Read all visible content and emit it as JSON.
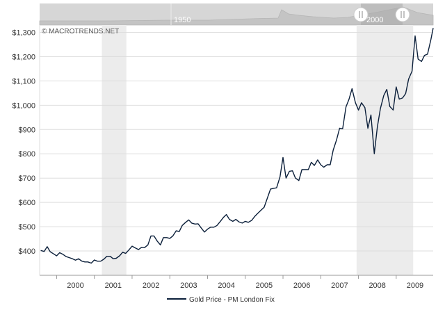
{
  "watermark": "© MACROTRENDS.NET",
  "navigator": {
    "year_label": "1950",
    "year_label_right": "2000"
  },
  "colors": {
    "line": "#0b1f3a",
    "recession": "#ececec",
    "grid": "#dddddd",
    "navigator_bg": "#d6d6d6",
    "navigator_window": "#bdbdbd"
  },
  "chart_data": {
    "type": "line",
    "title": "",
    "xlabel": "",
    "ylabel": "",
    "ylim": [
      300,
      1330
    ],
    "xlim": [
      1999.55,
      2009.98
    ],
    "grid": "horizontal",
    "legend_placement": "bottom",
    "y_ticks": [
      "$400",
      "$500",
      "$600",
      "$700",
      "$800",
      "$900",
      "$1,000",
      "$1,100",
      "$1,200",
      "$1,300"
    ],
    "y_tick_values": [
      400,
      500,
      600,
      700,
      800,
      900,
      1000,
      1100,
      1200,
      1300
    ],
    "x_ticks": [
      "2000",
      "2001",
      "2002",
      "2003",
      "2004",
      "2005",
      "2006",
      "2007",
      "2008",
      "2009"
    ],
    "x_tick_values": [
      2000,
      2001,
      2002,
      2003,
      2004,
      2005,
      2006,
      2007,
      2008,
      2009
    ],
    "recessions": [
      {
        "start": 2001.2,
        "end": 2001.85
      },
      {
        "start": 2007.95,
        "end": 2009.45
      }
    ],
    "series": [
      {
        "name": "Gold Price - PM London Fix",
        "x": [
          1999.58,
          1999.67,
          1999.75,
          1999.83,
          1999.92,
          2000.0,
          2000.08,
          2000.17,
          2000.25,
          2000.33,
          2000.42,
          2000.5,
          2000.58,
          2000.67,
          2000.75,
          2000.83,
          2000.92,
          2001.0,
          2001.08,
          2001.17,
          2001.25,
          2001.33,
          2001.42,
          2001.5,
          2001.58,
          2001.67,
          2001.75,
          2001.83,
          2001.92,
          2002.0,
          2002.08,
          2002.17,
          2002.25,
          2002.33,
          2002.42,
          2002.5,
          2002.58,
          2002.67,
          2002.75,
          2002.83,
          2002.92,
          2003.0,
          2003.08,
          2003.17,
          2003.25,
          2003.33,
          2003.42,
          2003.5,
          2003.58,
          2003.67,
          2003.75,
          2003.83,
          2003.92,
          2004.0,
          2004.08,
          2004.17,
          2004.25,
          2004.33,
          2004.42,
          2004.5,
          2004.58,
          2004.67,
          2004.75,
          2004.83,
          2004.92,
          2005.0,
          2005.08,
          2005.17,
          2005.25,
          2005.33,
          2005.42,
          2005.5,
          2005.58,
          2005.67,
          2005.75,
          2005.83,
          2005.92,
          2006.0,
          2006.08,
          2006.17,
          2006.25,
          2006.33,
          2006.42,
          2006.5,
          2006.58,
          2006.67,
          2006.75,
          2006.83,
          2006.92,
          2007.0,
          2007.08,
          2007.17,
          2007.25,
          2007.33,
          2007.42,
          2007.5,
          2007.58,
          2007.67,
          2007.75,
          2007.83,
          2007.92,
          2008.0,
          2008.08,
          2008.17,
          2008.25,
          2008.33,
          2008.42,
          2008.5,
          2008.58,
          2008.67,
          2008.75,
          2008.83,
          2008.92,
          2009.0,
          2009.08,
          2009.17,
          2009.25,
          2009.33,
          2009.42,
          2009.5,
          2009.58,
          2009.67,
          2009.75,
          2009.83,
          2009.92,
          2009.98
        ],
        "values": [
          402,
          398,
          418,
          397,
          388,
          380,
          393,
          386,
          377,
          373,
          368,
          362,
          368,
          358,
          355,
          355,
          350,
          363,
          358,
          358,
          366,
          378,
          378,
          368,
          370,
          380,
          395,
          390,
          405,
          420,
          413,
          406,
          415,
          414,
          425,
          462,
          462,
          440,
          425,
          455,
          455,
          452,
          462,
          483,
          480,
          505,
          518,
          528,
          515,
          511,
          512,
          495,
          478,
          490,
          498,
          498,
          505,
          520,
          538,
          550,
          530,
          522,
          530,
          520,
          515,
          522,
          518,
          526,
          542,
          555,
          568,
          580,
          615,
          655,
          658,
          660,
          705,
          785,
          700,
          728,
          730,
          700,
          690,
          735,
          735,
          735,
          765,
          752,
          775,
          755,
          745,
          755,
          755,
          815,
          858,
          905,
          903,
          993,
          1025,
          1068,
          1010,
          980,
          1010,
          990,
          905,
          960,
          800,
          910,
          985,
          1040,
          1065,
          995,
          980,
          1075,
          1025,
          1030,
          1048,
          1108,
          1140,
          1285,
          1190,
          1180,
          1205,
          1210,
          1270,
          1318
        ]
      }
    ]
  }
}
